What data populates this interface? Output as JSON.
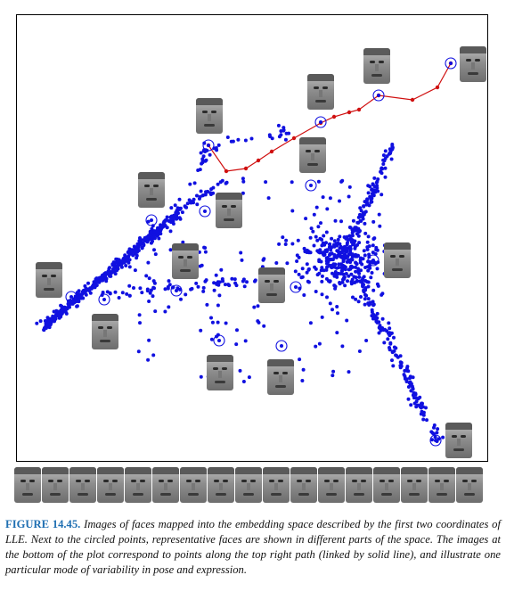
{
  "caption": {
    "label": "FIGURE 14.45.",
    "text": "Images of faces mapped into the embedding space described by the first two coordinates of LLE. Next to the circled points, representative faces are shown in different parts of the space. The images at the bottom of the plot correspond to points along the top right path (linked by solid line), and illustrate one particular mode of variability in pose and expression."
  },
  "colors": {
    "points": "#1010e0",
    "path": "#d01010",
    "frame": "#000000"
  },
  "face_strip_count": 17
}
